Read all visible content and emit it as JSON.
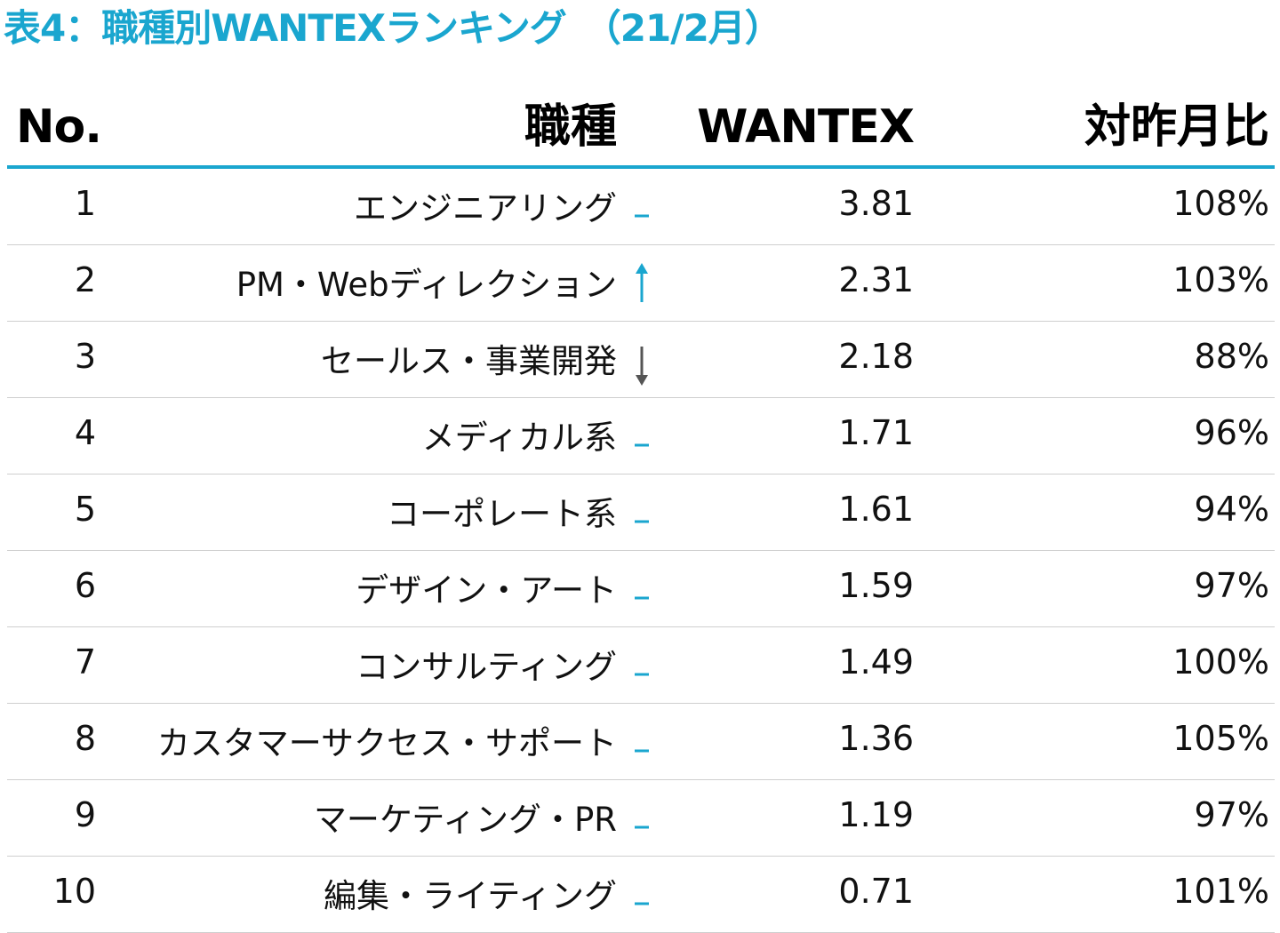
{
  "title": "表4：職種別WANTEXランキング　（21/2月）",
  "colors": {
    "accent": "#1aa6cf",
    "down": "#555555",
    "divider": "#cfcfcf"
  },
  "headers": {
    "no": "No.",
    "job": "職種",
    "wantex": "WANTEX",
    "ratio": "対昨月比"
  },
  "rows": [
    {
      "no": "1",
      "job": "エンジニアリング",
      "trend": "flat",
      "wantex": "3.81",
      "ratio": "108%"
    },
    {
      "no": "2",
      "job": "PM・Webディレクション",
      "trend": "up",
      "wantex": "2.31",
      "ratio": "103%"
    },
    {
      "no": "3",
      "job": "セールス・事業開発",
      "trend": "down",
      "wantex": "2.18",
      "ratio": "88%"
    },
    {
      "no": "4",
      "job": "メディカル系",
      "trend": "flat",
      "wantex": "1.71",
      "ratio": "96%"
    },
    {
      "no": "5",
      "job": "コーポレート系",
      "trend": "flat",
      "wantex": "1.61",
      "ratio": "94%"
    },
    {
      "no": "6",
      "job": "デザイン・アート",
      "trend": "flat",
      "wantex": "1.59",
      "ratio": "97%"
    },
    {
      "no": "7",
      "job": "コンサルティング",
      "trend": "flat",
      "wantex": "1.49",
      "ratio": "100%"
    },
    {
      "no": "8",
      "job": "カスタマーサクセス・サポート",
      "trend": "flat",
      "wantex": "1.36",
      "ratio": "105%"
    },
    {
      "no": "9",
      "job": "マーケティング・PR",
      "trend": "flat",
      "wantex": "1.19",
      "ratio": "97%"
    },
    {
      "no": "10",
      "job": "編集・ライティング",
      "trend": "flat",
      "wantex": "0.71",
      "ratio": "101%"
    }
  ]
}
